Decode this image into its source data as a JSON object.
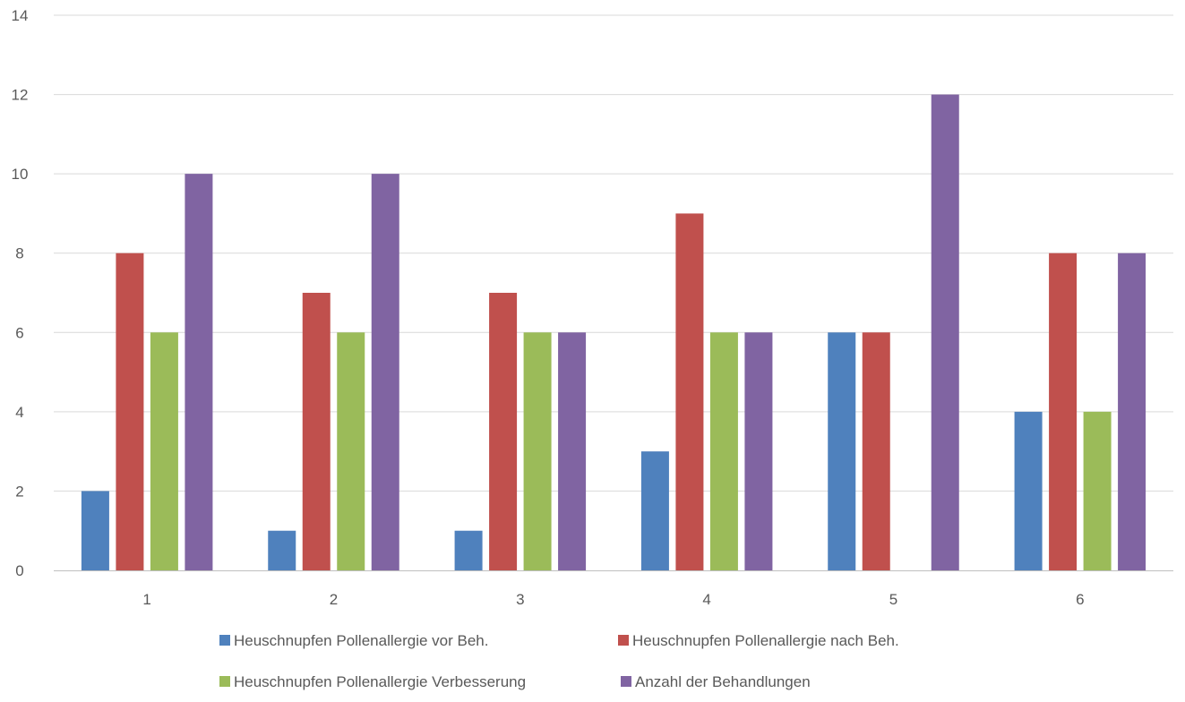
{
  "chart_data": {
    "type": "bar",
    "categories": [
      "1",
      "2",
      "3",
      "4",
      "5",
      "6"
    ],
    "series": [
      {
        "name": "Heuschnupfen Pollenallergie vor Beh.",
        "color": "#4f81bd",
        "values": [
          2,
          1,
          1,
          3,
          6,
          4
        ]
      },
      {
        "name": "Heuschnupfen Pollenallergie nach Beh.",
        "color": "#c0504d",
        "values": [
          8,
          7,
          7,
          9,
          6,
          8
        ]
      },
      {
        "name": "Heuschnupfen Pollenallergie Verbesserung",
        "color": "#9bbb59",
        "values": [
          6,
          6,
          6,
          6,
          0,
          4
        ]
      },
      {
        "name": "Anzahl der Behandlungen",
        "color": "#8064a2",
        "values": [
          10,
          10,
          6,
          6,
          12,
          8
        ]
      }
    ],
    "title": "",
    "xlabel": "",
    "ylabel": "",
    "ylim": [
      0,
      14
    ],
    "yticks": [
      0,
      2,
      4,
      6,
      8,
      10,
      12,
      14
    ],
    "grid": true,
    "legend_position": "bottom",
    "gridline_color": "#d9d9d9",
    "axis_line_color": "#bfbfbf",
    "tick_label_color": "#595959"
  }
}
